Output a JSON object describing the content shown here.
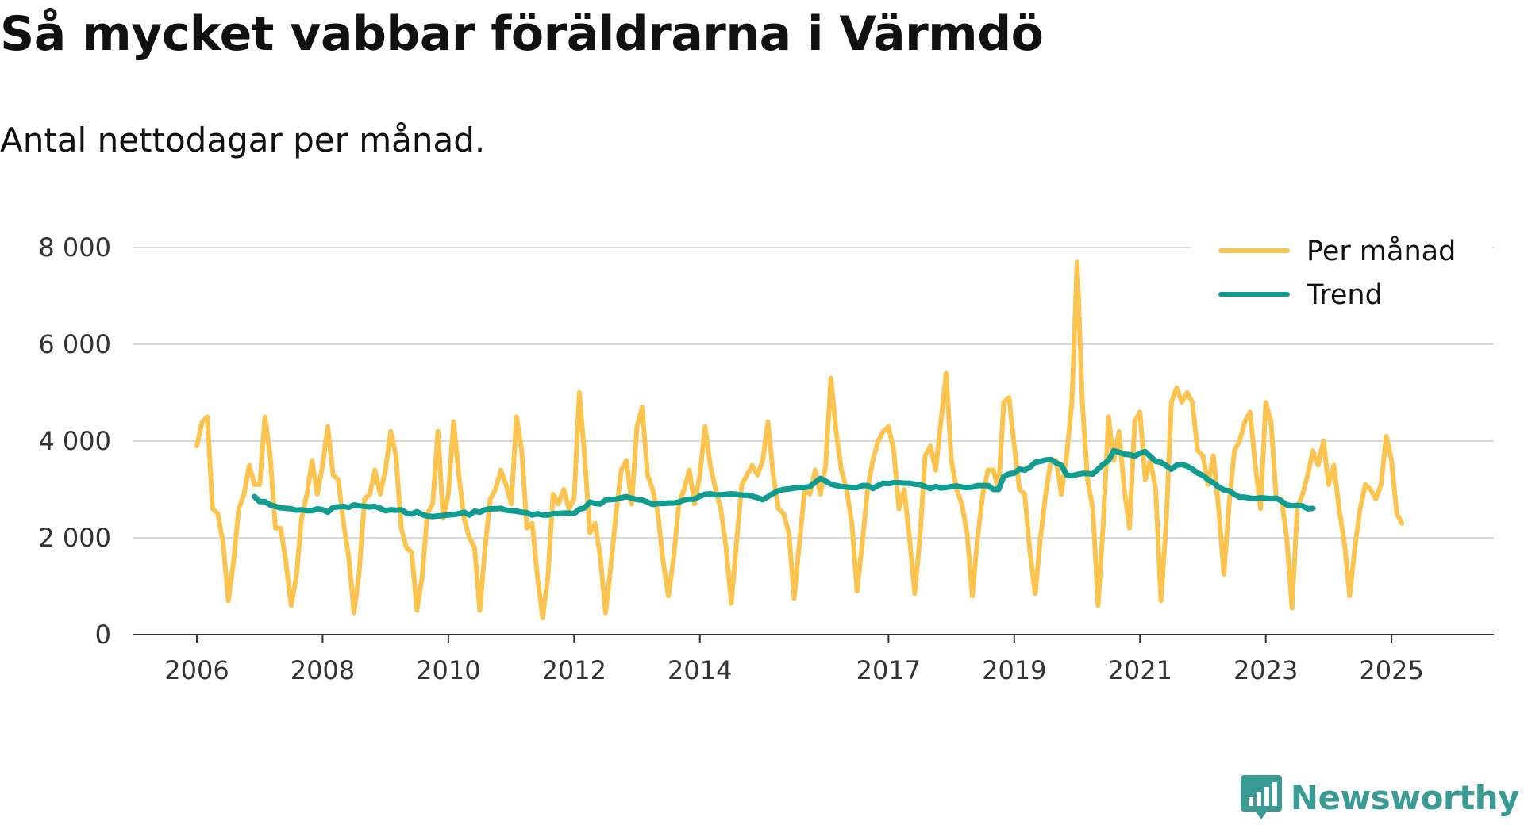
{
  "title": "Så mycket vabbar föräldrarna i Värmdö",
  "subtitle": "Antal nettodagar per månad.",
  "brand": {
    "name": "Newsworthy",
    "icon": "chart-bubble-icon",
    "color": "#3a9a94"
  },
  "colors": {
    "per_month": "#fcc44e",
    "trend": "#0f9d91",
    "grid": "#d9d9d9",
    "axis": "#333333"
  },
  "chart_data": {
    "type": "line",
    "ylim": [
      0,
      8000
    ],
    "y_ticks": [
      0,
      2000,
      4000,
      6000,
      8000
    ],
    "y_tick_labels": [
      "0",
      "2 000",
      "4 000",
      "6 000",
      "8 000"
    ],
    "x_ticks": [
      2006,
      2008,
      2010,
      2012,
      2014,
      2017,
      2019,
      2021,
      2023,
      2025
    ],
    "x_tick_labels": [
      "2006",
      "2008",
      "2010",
      "2012",
      "2014",
      "2017",
      "2019",
      "2021",
      "2023",
      "2025"
    ],
    "legend_position": "top-right",
    "series": [
      {
        "name": "Per månad",
        "start": 2006.0,
        "step_months": 1,
        "values": [
          3900,
          4400,
          4500,
          2600,
          2500,
          1900,
          700,
          1500,
          2600,
          2900,
          3500,
          3100,
          3100,
          4500,
          3700,
          2200,
          2200,
          1500,
          600,
          1200,
          2400,
          2900,
          3600,
          2900,
          3500,
          4300,
          3300,
          3200,
          2300,
          1600,
          450,
          1300,
          2800,
          2900,
          3400,
          2900,
          3400,
          4200,
          3700,
          2200,
          1800,
          1700,
          500,
          1200,
          2500,
          2700,
          4200,
          2400,
          2900,
          4400,
          3300,
          2400,
          2000,
          1800,
          500,
          1800,
          2800,
          3000,
          3400,
          3100,
          2700,
          4500,
          3800,
          2200,
          2300,
          1200,
          350,
          1200,
          2900,
          2700,
          3000,
          2600,
          2800,
          5000,
          3700,
          2100,
          2300,
          1600,
          450,
          1400,
          2500,
          3400,
          3600,
          2700,
          4300,
          4700,
          3300,
          3000,
          2500,
          1500,
          800,
          1600,
          2700,
          3000,
          3400,
          2700,
          3300,
          4300,
          3500,
          3000,
          2600,
          1800,
          650,
          1900,
          3100,
          3300,
          3500,
          3300,
          3600,
          4400,
          3300,
          2600,
          2500,
          2100,
          750,
          1900,
          3000,
          2900,
          3400,
          2900,
          3500,
          5300,
          4200,
          3400,
          3000,
          2300,
          900,
          1900,
          3000,
          3600,
          4000,
          4200,
          4300,
          3800,
          2600,
          3000,
          2000,
          850,
          2000,
          3700,
          3900,
          3400,
          4400,
          5400,
          3600,
          3000,
          2700,
          2100,
          800,
          2000,
          2900,
          3400,
          3400,
          3000,
          4800,
          4900,
          3900,
          3000,
          2900,
          1700,
          850,
          2000,
          2900,
          3600,
          3600,
          2900,
          3700,
          4800,
          7700,
          4800,
          3200,
          2600,
          600,
          2300,
          4500,
          3600,
          4200,
          3000,
          2200,
          4400,
          4600,
          3200,
          3600,
          3000,
          700,
          2300,
          4800,
          5100,
          4800,
          5000,
          4800,
          3800,
          3700,
          3100,
          3700,
          2600,
          1250,
          2700,
          3800,
          4000,
          4400,
          4600,
          3500,
          2600,
          4800,
          4400,
          2800,
          2800,
          2000,
          550,
          2600,
          2900,
          3300,
          3800,
          3500,
          4000,
          3100,
          3500,
          2600,
          1900,
          800,
          1800,
          2600,
          3100,
          3000,
          2800,
          3100,
          4100,
          3600,
          2500,
          2300
        ]
      },
      {
        "name": "Trend",
        "start": 2006.9167,
        "step_months": 1,
        "values": [
          2850,
          2750,
          2750,
          2680,
          2650,
          2620,
          2610,
          2600,
          2570,
          2580,
          2560,
          2560,
          2600,
          2580,
          2530,
          2630,
          2640,
          2650,
          2630,
          2680,
          2660,
          2650,
          2640,
          2650,
          2610,
          2560,
          2580,
          2570,
          2580,
          2510,
          2490,
          2540,
          2480,
          2450,
          2440,
          2450,
          2460,
          2470,
          2480,
          2500,
          2530,
          2470,
          2550,
          2530,
          2580,
          2600,
          2600,
          2610,
          2570,
          2560,
          2550,
          2530,
          2520,
          2470,
          2500,
          2470,
          2470,
          2500,
          2500,
          2510,
          2510,
          2500,
          2590,
          2620,
          2740,
          2710,
          2700,
          2780,
          2790,
          2800,
          2830,
          2850,
          2820,
          2790,
          2780,
          2740,
          2690,
          2710,
          2710,
          2720,
          2720,
          2740,
          2780,
          2800,
          2800,
          2860,
          2900,
          2910,
          2890,
          2890,
          2900,
          2910,
          2900,
          2880,
          2880,
          2860,
          2830,
          2790,
          2850,
          2920,
          2970,
          3000,
          3010,
          3030,
          3040,
          3040,
          3060,
          3150,
          3230,
          3170,
          3110,
          3080,
          3060,
          3050,
          3040,
          3040,
          3080,
          3080,
          3020,
          3080,
          3130,
          3120,
          3140,
          3140,
          3130,
          3130,
          3110,
          3100,
          3060,
          3020,
          3060,
          3030,
          3040,
          3060,
          3070,
          3050,
          3040,
          3050,
          3080,
          3080,
          3080,
          3000,
          3000,
          3270,
          3320,
          3340,
          3420,
          3400,
          3460,
          3560,
          3580,
          3610,
          3620,
          3550,
          3500,
          3300,
          3280,
          3310,
          3330,
          3330,
          3320,
          3420,
          3520,
          3600,
          3800,
          3770,
          3730,
          3720,
          3690,
          3750,
          3780,
          3680,
          3580,
          3560,
          3490,
          3420,
          3500,
          3520,
          3480,
          3420,
          3340,
          3290,
          3200,
          3140,
          3050,
          2990,
          2970,
          2900,
          2840,
          2840,
          2820,
          2810,
          2830,
          2820,
          2810,
          2820,
          2760,
          2680,
          2660,
          2670,
          2660,
          2600,
          2610
        ]
      }
    ]
  }
}
